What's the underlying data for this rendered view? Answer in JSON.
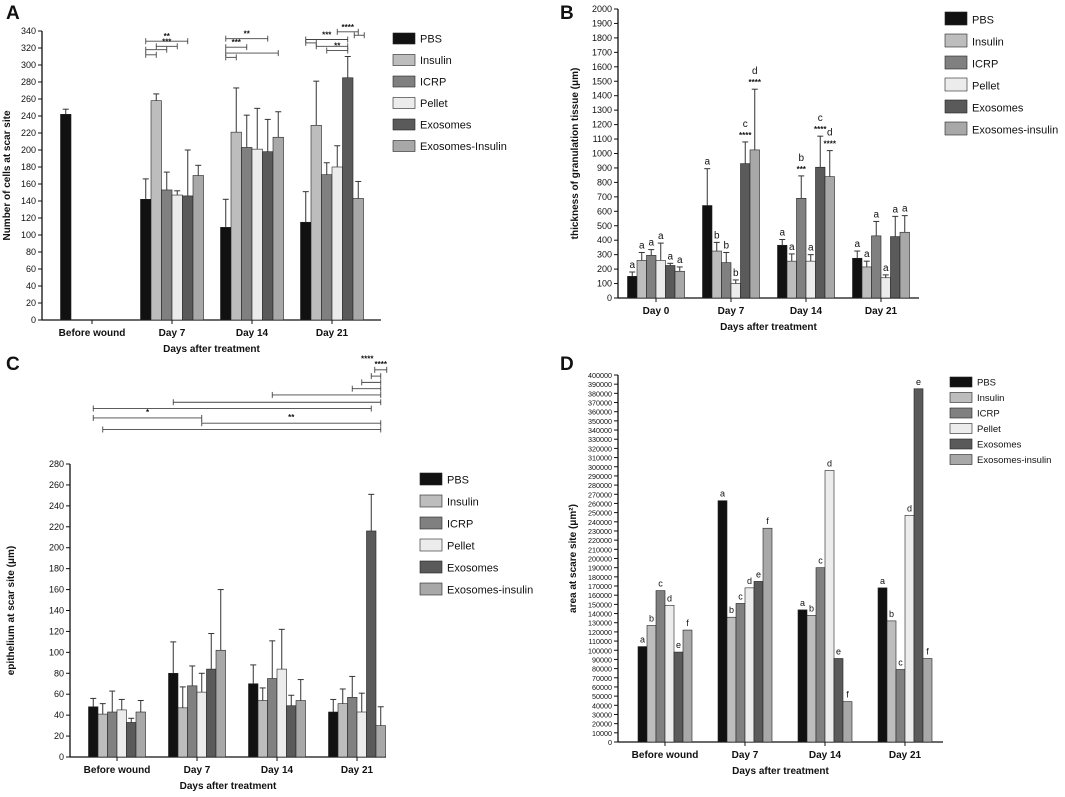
{
  "chart_data": [
    {
      "panel": "A",
      "type": "bar",
      "ylabel": "Number of cells at scar site",
      "xlabel": "Days after treatment",
      "ylim": [
        0,
        340
      ],
      "ytick_step": 20,
      "categories": [
        "Before wound",
        "Day 7",
        "Day 14",
        "Day 21"
      ],
      "series": [
        {
          "name": "PBS",
          "values": [
            242,
            142,
            109,
            115
          ],
          "errors": [
            6,
            24,
            33,
            36
          ],
          "color": "#111111"
        },
        {
          "name": "Insulin",
          "values": [
            null,
            258,
            221,
            229
          ],
          "errors": [
            null,
            8,
            52,
            52
          ],
          "color": "#bdbdbd"
        },
        {
          "name": "ICRP",
          "values": [
            null,
            153,
            203,
            171
          ],
          "errors": [
            null,
            21,
            38,
            14
          ],
          "color": "#808080"
        },
        {
          "name": "Pellet",
          "values": [
            null,
            147,
            201,
            180
          ],
          "errors": [
            null,
            5,
            48,
            25
          ],
          "color": "#ececec"
        },
        {
          "name": "Exosomes",
          "values": [
            null,
            146,
            198,
            285
          ],
          "errors": [
            null,
            54,
            38,
            25
          ],
          "color": "#5a5a5a"
        },
        {
          "name": "Exosomes-Insulin",
          "values": [
            null,
            170,
            215,
            143
          ],
          "errors": [
            null,
            12,
            30,
            20
          ],
          "color": "#a8a8a8"
        }
      ],
      "significance": [
        "**",
        "***",
        "**",
        "***",
        "****",
        "***",
        "**"
      ]
    },
    {
      "panel": "B",
      "type": "bar",
      "ylabel": "thickness of granulation tissue (μm)",
      "xlabel": "Days after treatment",
      "ylim": [
        0,
        2000
      ],
      "ytick_step": 100,
      "categories": [
        "Day 0",
        "Day 7",
        "Day 14",
        "Day 21"
      ],
      "series": [
        {
          "name": "PBS",
          "values": [
            150,
            640,
            365,
            275
          ],
          "errors": [
            30,
            255,
            40,
            50
          ],
          "color": "#111111"
        },
        {
          "name": "Insulin",
          "values": [
            260,
            325,
            255,
            215
          ],
          "errors": [
            55,
            60,
            50,
            40
          ],
          "color": "#bdbdbd"
        },
        {
          "name": "ICRP",
          "values": [
            295,
            245,
            690,
            430
          ],
          "errors": [
            40,
            70,
            155,
            100
          ],
          "color": "#808080"
        },
        {
          "name": "Pellet",
          "values": [
            260,
            100,
            255,
            140
          ],
          "errors": [
            120,
            25,
            45,
            20
          ],
          "color": "#ececec"
        },
        {
          "name": "Exosomes",
          "values": [
            225,
            930,
            905,
            425
          ],
          "errors": [
            15,
            150,
            215,
            140
          ],
          "color": "#5a5a5a"
        },
        {
          "name": "Exosomes-insulin",
          "values": [
            185,
            1025,
            840,
            455
          ],
          "errors": [
            30,
            420,
            180,
            115
          ],
          "color": "#a8a8a8"
        }
      ],
      "annotations": [
        [
          "a",
          "a",
          "a",
          "a",
          "a",
          "a"
        ],
        [
          "a",
          "b",
          "b",
          "b",
          "c\n****",
          "d\n****"
        ],
        [
          "a",
          "a",
          "b\n***",
          "a",
          "c\n****",
          "d\n****"
        ],
        [
          "a",
          "a",
          "a",
          "a",
          "a",
          "a"
        ]
      ]
    },
    {
      "panel": "C",
      "type": "bar",
      "ylabel": "epithelium at scar site (μm)",
      "xlabel": "Days after treatment",
      "ylim": [
        0,
        280
      ],
      "ytick_step": 20,
      "categories": [
        "Before wound",
        "Day 7",
        "Day 14",
        "Day 21"
      ],
      "series": [
        {
          "name": "PBS",
          "values": [
            48,
            80,
            70,
            43
          ],
          "errors": [
            8,
            30,
            18,
            12
          ],
          "color": "#111111"
        },
        {
          "name": "Insulin",
          "values": [
            41,
            47,
            54,
            51
          ],
          "errors": [
            10,
            20,
            12,
            14
          ],
          "color": "#bdbdbd"
        },
        {
          "name": "ICRP",
          "values": [
            43,
            68,
            75,
            57
          ],
          "errors": [
            20,
            19,
            36,
            20
          ],
          "color": "#808080"
        },
        {
          "name": "Pellet",
          "values": [
            45,
            62,
            84,
            43
          ],
          "errors": [
            10,
            18,
            38,
            18
          ],
          "color": "#ececec"
        },
        {
          "name": "Exosomes",
          "values": [
            33,
            84,
            49,
            216
          ],
          "errors": [
            4,
            34,
            10,
            35
          ],
          "color": "#5a5a5a"
        },
        {
          "name": "Exosomes-insulin",
          "values": [
            43,
            102,
            54,
            30
          ],
          "errors": [
            11,
            58,
            20,
            18
          ],
          "color": "#a8a8a8"
        }
      ],
      "significance": [
        "****",
        "*",
        "**"
      ]
    },
    {
      "panel": "D",
      "type": "bar",
      "ylabel": "area at scare site (μm²)",
      "xlabel": "Days after treatment",
      "ylim": [
        0,
        400000
      ],
      "ytick_step": 10000,
      "categories": [
        "Before wound",
        "Day 7",
        "Day 14",
        "Day 21"
      ],
      "series": [
        {
          "name": "PBS",
          "values": [
            104000,
            263000,
            144000,
            168000
          ],
          "color": "#111111"
        },
        {
          "name": "Insulin",
          "values": [
            127000,
            136000,
            138000,
            132000
          ],
          "color": "#bdbdbd"
        },
        {
          "name": "ICRP",
          "values": [
            165000,
            151000,
            190000,
            79000
          ],
          "color": "#808080"
        },
        {
          "name": "Pellet",
          "values": [
            149000,
            168000,
            296000,
            247000
          ],
          "color": "#ececec"
        },
        {
          "name": "Exosomes",
          "values": [
            98000,
            175000,
            91000,
            385000
          ],
          "color": "#5a5a5a"
        },
        {
          "name": "Exosomes-insulin",
          "values": [
            122000,
            233000,
            44000,
            91000
          ],
          "color": "#a8a8a8"
        }
      ],
      "annotations": [
        [
          "a",
          "b",
          "c",
          "d",
          "e",
          "f"
        ],
        [
          "a",
          "b",
          "c",
          "d",
          "e",
          "f"
        ],
        [
          "a",
          "b",
          "c",
          "d",
          "e",
          "f"
        ],
        [
          "a",
          "b",
          "c",
          "d",
          "e",
          "f"
        ]
      ]
    }
  ]
}
